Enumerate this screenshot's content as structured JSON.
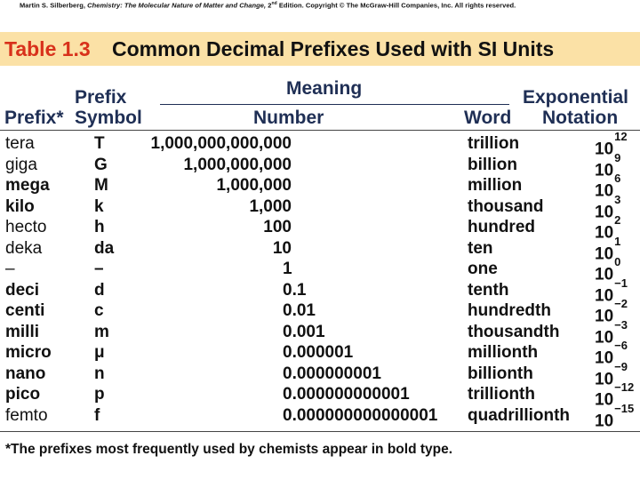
{
  "copyright": {
    "author": "Martin S. Silberberg,",
    "book": "Chemistry: The Molecular Nature of Matter and Change,",
    "edition": "2",
    "edition_sup": "nd",
    "rest": "Edition.  Copyright © The McGraw-Hill Companies, Inc. All rights reserved."
  },
  "title": {
    "label": "Table 1.3",
    "text": "Common Decimal Prefixes Used with SI Units"
  },
  "headers": {
    "prefix_symbol_top": "Prefix",
    "meaning": "Meaning",
    "exponential_top": "Exponential",
    "prefix": "Prefix*",
    "symbol": "Symbol",
    "number": "Number",
    "word": "Word",
    "exponential_bottom": "Notation"
  },
  "rows": [
    {
      "prefix": "tera",
      "bold": false,
      "symbol": "T",
      "number": "1,000,000,000,000",
      "word": "trillion",
      "exp": "12"
    },
    {
      "prefix": "giga",
      "bold": false,
      "symbol": "G",
      "number": "1,000,000,000",
      "word": "billion",
      "exp": "9"
    },
    {
      "prefix": "mega",
      "bold": true,
      "symbol": "M",
      "number": "1,000,000",
      "word": "million",
      "exp": "6"
    },
    {
      "prefix": "kilo",
      "bold": true,
      "symbol": "k",
      "number": "1,000",
      "word": "thousand",
      "exp": "3"
    },
    {
      "prefix": "hecto",
      "bold": false,
      "symbol": "h",
      "number": "100",
      "word": "hundred",
      "exp": "2"
    },
    {
      "prefix": "deka",
      "bold": false,
      "symbol": "da",
      "number": "10",
      "word": "ten",
      "exp": "1"
    },
    {
      "prefix": "–",
      "bold": false,
      "symbol": "–",
      "number": "1",
      "word": "one",
      "exp": "0"
    },
    {
      "prefix": "deci",
      "bold": true,
      "symbol": "d",
      "number": "0.1",
      "word": "tenth",
      "exp": "−1"
    },
    {
      "prefix": "centi",
      "bold": true,
      "symbol": "c",
      "number": "0.01",
      "word": "hundredth",
      "exp": "−2"
    },
    {
      "prefix": "milli",
      "bold": true,
      "symbol": "m",
      "number": "0.001",
      "word": "thousandth",
      "exp": "−3"
    },
    {
      "prefix": "micro",
      "bold": true,
      "symbol": "μ",
      "number": "0.000001",
      "word": "millionth",
      "exp": "−6"
    },
    {
      "prefix": "nano",
      "bold": true,
      "symbol": "n",
      "number": "0.000000001",
      "word": "billionth",
      "exp": "−9"
    },
    {
      "prefix": "pico",
      "bold": true,
      "symbol": "p",
      "number": "0.000000000001",
      "word": "trillionth",
      "exp": "−12"
    },
    {
      "prefix": "femto",
      "bold": false,
      "symbol": "f",
      "number": "0.000000000000001",
      "word": "quadrillionth",
      "exp": "−15"
    }
  ],
  "exp_base": "10",
  "footnote": "*The prefixes most frequently used by chemists appear in bold type.",
  "colors": {
    "title_band": "#fbe1a6",
    "title_label": "#d8311b",
    "header_text": "#1f2f55"
  }
}
